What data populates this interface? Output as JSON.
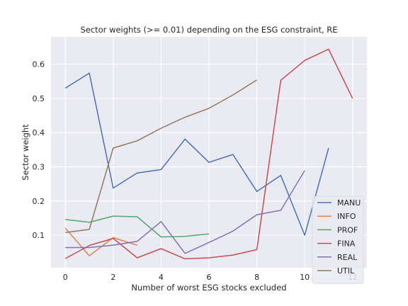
{
  "chart_data": {
    "type": "line",
    "title": "Sector weights (>= 0.01) depending on the ESG constraint, RE",
    "xlabel": "Number of worst ESG stocks excluded",
    "ylabel": "Sector weight",
    "xlim": [
      -0.6,
      12.6
    ],
    "ylim": [
      0.005,
      0.68
    ],
    "xticks": [
      0,
      2,
      4,
      6,
      8,
      10,
      12
    ],
    "yticks": [
      0.1,
      0.2,
      0.3,
      0.4,
      0.5,
      0.6
    ],
    "ytick_labels": [
      "0.1",
      "0.2",
      "0.3",
      "0.4",
      "0.5",
      "0.6"
    ],
    "grid": true,
    "legend_position": "lower-right",
    "background": "#eaeaf2",
    "series": [
      {
        "name": "MANU",
        "color": "#4c72b0",
        "x": [
          0,
          1,
          2,
          3,
          4,
          5,
          6,
          7,
          8,
          9,
          10,
          11
        ],
        "y": [
          0.53,
          0.574,
          0.238,
          0.282,
          0.292,
          0.381,
          0.313,
          0.336,
          0.228,
          0.275,
          0.1,
          0.355
        ]
      },
      {
        "name": "INFO",
        "color": "#dd8452",
        "x": [
          0,
          1,
          2,
          3
        ],
        "y": [
          0.121,
          0.04,
          0.093,
          0.071
        ]
      },
      {
        "name": "PROF",
        "color": "#55a868",
        "x": [
          0,
          1,
          2,
          3,
          4,
          5,
          6
        ],
        "y": [
          0.146,
          0.138,
          0.156,
          0.154,
          0.095,
          0.097,
          0.104
        ]
      },
      {
        "name": "FINA",
        "color": "#c44e52",
        "x": [
          0,
          1,
          2,
          3,
          4,
          5,
          6,
          7,
          8,
          9,
          10,
          11,
          12
        ],
        "y": [
          0.032,
          0.07,
          0.091,
          0.034,
          0.061,
          0.031,
          0.034,
          0.042,
          0.058,
          0.553,
          0.611,
          0.644,
          0.5
        ]
      },
      {
        "name": "REAL",
        "color": "#8172b3",
        "x": [
          0,
          1,
          2,
          3,
          4,
          5,
          6,
          7,
          8,
          9,
          10
        ],
        "y": [
          0.064,
          0.064,
          0.071,
          0.082,
          0.14,
          0.047,
          0.079,
          0.112,
          0.16,
          0.173,
          0.289
        ]
      },
      {
        "name": "UTIL",
        "color": "#937860",
        "x": [
          0,
          1,
          2,
          3,
          4,
          5,
          6,
          7,
          8
        ],
        "y": [
          0.108,
          0.117,
          0.355,
          0.376,
          0.413,
          0.445,
          0.471,
          0.51,
          0.554
        ]
      }
    ]
  }
}
